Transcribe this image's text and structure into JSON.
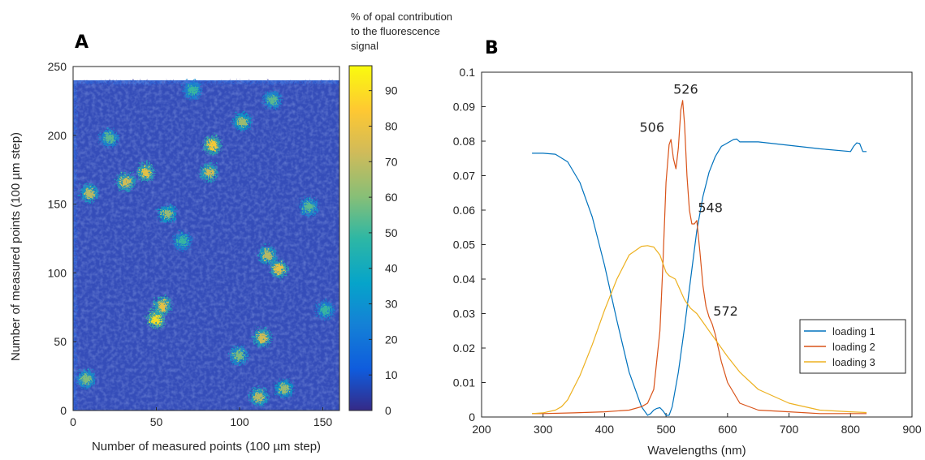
{
  "panels": {
    "a_label": "A",
    "b_label": "B"
  },
  "chart_data": [
    {
      "type": "heatmap",
      "panel": "A",
      "xlabel": "Number of measured points (100 µm step)",
      "ylabel": "Number of measured points (100 µm step)",
      "xlim": [
        0,
        160
      ],
      "ylim": [
        0,
        250
      ],
      "data_extent": {
        "x": [
          0,
          160
        ],
        "y": [
          0,
          240
        ]
      },
      "xticks": [
        "0",
        "50",
        "100",
        "150"
      ],
      "yticks": [
        "0",
        "50",
        "100",
        "150",
        "200",
        "250"
      ],
      "colorbar": {
        "title_lines": [
          "% of opal contribution",
          "to the fluorescence",
          "signal"
        ],
        "range": [
          0,
          97
        ],
        "ticks": [
          "0",
          "10",
          "20",
          "30",
          "40",
          "50",
          "60",
          "70",
          "80",
          "90"
        ],
        "colormap": "parula"
      },
      "hotspots": [
        {
          "x": 8,
          "y": 160,
          "level": 70
        },
        {
          "x": 30,
          "y": 168,
          "level": 75
        },
        {
          "x": 42,
          "y": 175,
          "level": 80
        },
        {
          "x": 55,
          "y": 145,
          "level": 65
        },
        {
          "x": 82,
          "y": 195,
          "level": 85
        },
        {
          "x": 80,
          "y": 175,
          "level": 75
        },
        {
          "x": 100,
          "y": 212,
          "level": 65
        },
        {
          "x": 118,
          "y": 228,
          "level": 55
        },
        {
          "x": 48,
          "y": 68,
          "level": 90
        },
        {
          "x": 52,
          "y": 78,
          "level": 80
        },
        {
          "x": 122,
          "y": 105,
          "level": 80
        },
        {
          "x": 115,
          "y": 115,
          "level": 70
        },
        {
          "x": 112,
          "y": 55,
          "level": 75
        },
        {
          "x": 98,
          "y": 42,
          "level": 60
        },
        {
          "x": 110,
          "y": 12,
          "level": 70
        },
        {
          "x": 125,
          "y": 18,
          "level": 65
        },
        {
          "x": 6,
          "y": 25,
          "level": 60
        },
        {
          "x": 140,
          "y": 150,
          "level": 55
        },
        {
          "x": 150,
          "y": 75,
          "level": 50
        },
        {
          "x": 70,
          "y": 235,
          "level": 50
        },
        {
          "x": 20,
          "y": 200,
          "level": 55
        },
        {
          "x": 64,
          "y": 125,
          "level": 50
        }
      ]
    },
    {
      "type": "line",
      "panel": "B",
      "xlabel": "Wavelengths (nm)",
      "ylabel": "",
      "xlim": [
        200,
        900
      ],
      "ylim": [
        0,
        0.1
      ],
      "xticks": [
        "200",
        "300",
        "400",
        "500",
        "600",
        "700",
        "800",
        "900"
      ],
      "yticks": [
        "0",
        "0.01",
        "0.02",
        "0.03",
        "0.04",
        "0.05",
        "0.06",
        "0.07",
        "0.08",
        "0.09",
        "0.1"
      ],
      "legend_position": "lower-right",
      "series": [
        {
          "name": "loading 1",
          "color": "#0072BD",
          "x": [
            282,
            300,
            320,
            340,
            360,
            380,
            400,
            420,
            440,
            460,
            470,
            475,
            480,
            485,
            490,
            495,
            500,
            505,
            510,
            520,
            530,
            540,
            550,
            560,
            570,
            580,
            590,
            600,
            610,
            615,
            620,
            650,
            700,
            750,
            800,
            805,
            810,
            815,
            820,
            826
          ],
          "y": [
            0.0765,
            0.0765,
            0.0762,
            0.074,
            0.068,
            0.058,
            0.044,
            0.028,
            0.013,
            0.003,
            0.0005,
            0.001,
            0.002,
            0.0025,
            0.0027,
            0.0018,
            0.0005,
            0.0005,
            0.003,
            0.013,
            0.026,
            0.04,
            0.054,
            0.064,
            0.071,
            0.0755,
            0.0785,
            0.0795,
            0.0805,
            0.0806,
            0.0798,
            0.0798,
            0.0788,
            0.0778,
            0.077,
            0.0785,
            0.0795,
            0.0793,
            0.077,
            0.077
          ]
        },
        {
          "name": "loading 2",
          "color": "#D95319",
          "x": [
            282,
            300,
            350,
            400,
            440,
            460,
            470,
            480,
            490,
            495,
            500,
            505,
            508,
            512,
            516,
            520,
            524,
            527,
            530,
            534,
            538,
            542,
            546,
            550,
            555,
            560,
            565,
            570,
            575,
            580,
            590,
            600,
            620,
            650,
            700,
            750,
            800,
            826
          ],
          "y": [
            0.001,
            0.001,
            0.0012,
            0.0015,
            0.002,
            0.003,
            0.004,
            0.008,
            0.025,
            0.045,
            0.068,
            0.079,
            0.0805,
            0.075,
            0.072,
            0.078,
            0.089,
            0.0918,
            0.085,
            0.07,
            0.06,
            0.056,
            0.056,
            0.057,
            0.048,
            0.038,
            0.032,
            0.029,
            0.027,
            0.024,
            0.016,
            0.01,
            0.004,
            0.002,
            0.0015,
            0.001,
            0.001,
            0.001
          ]
        },
        {
          "name": "loading 3",
          "color": "#EDB120",
          "x": [
            282,
            300,
            320,
            330,
            340,
            360,
            380,
            400,
            420,
            440,
            460,
            470,
            480,
            490,
            500,
            505,
            510,
            515,
            520,
            530,
            540,
            550,
            560,
            570,
            580,
            600,
            620,
            650,
            700,
            750,
            800,
            826
          ],
          "y": [
            0.001,
            0.0012,
            0.002,
            0.003,
            0.005,
            0.012,
            0.021,
            0.031,
            0.04,
            0.047,
            0.0495,
            0.0497,
            0.0493,
            0.047,
            0.042,
            0.041,
            0.0405,
            0.04,
            0.038,
            0.034,
            0.0315,
            0.03,
            0.0275,
            0.025,
            0.0225,
            0.0175,
            0.013,
            0.008,
            0.004,
            0.002,
            0.0015,
            0.0013
          ]
        }
      ],
      "annotations": [
        {
          "text": "506",
          "x": 477,
          "y": 0.0827
        },
        {
          "text": "526",
          "x": 532,
          "y": 0.0938
        },
        {
          "text": "548",
          "x": 572,
          "y": 0.0594
        },
        {
          "text": "572",
          "x": 597,
          "y": 0.0294
        }
      ]
    }
  ]
}
